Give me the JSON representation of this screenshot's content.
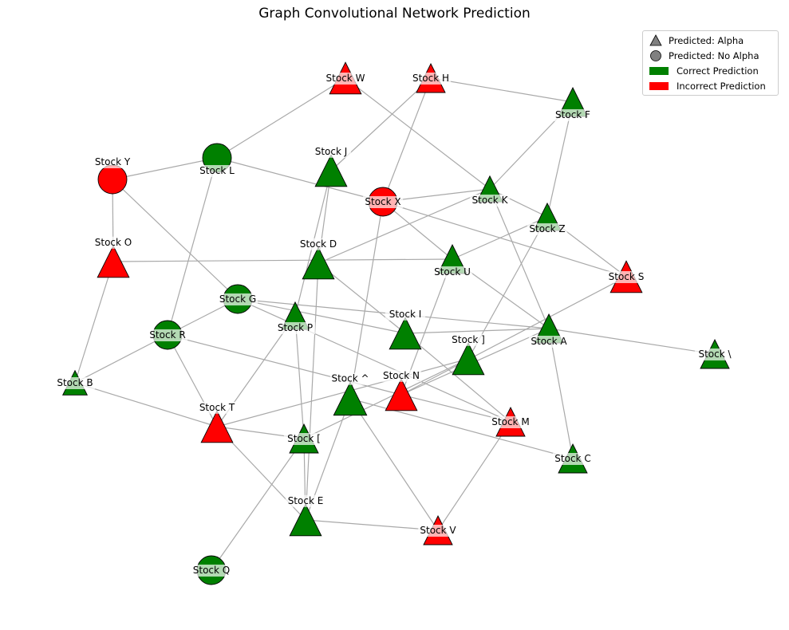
{
  "title": "Graph Convolutional Network Prediction",
  "colors": {
    "correct": "#008000",
    "incorrect": "#ff0000",
    "edge": "#a9a9a9",
    "legend_marker": "#808080"
  },
  "legend": {
    "alpha_label": "Predicted: Alpha",
    "no_alpha_label": "Predicted: No Alpha",
    "correct_label": "Correct Prediction",
    "incorrect_label": "Incorrect Prediction"
  },
  "nodes": [
    {
      "id": "A",
      "label": "Stock A",
      "shape": "triangle",
      "status": "correct"
    },
    {
      "id": "B",
      "label": "Stock B",
      "shape": "triangle",
      "status": "correct"
    },
    {
      "id": "C",
      "label": "Stock C",
      "shape": "triangle",
      "status": "correct"
    },
    {
      "id": "D",
      "label": "Stock D",
      "shape": "triangle",
      "status": "correct"
    },
    {
      "id": "E",
      "label": "Stock E",
      "shape": "triangle",
      "status": "correct"
    },
    {
      "id": "F",
      "label": "Stock F",
      "shape": "triangle",
      "status": "correct"
    },
    {
      "id": "G",
      "label": "Stock G",
      "shape": "circle",
      "status": "correct"
    },
    {
      "id": "H",
      "label": "Stock H",
      "shape": "triangle",
      "status": "incorrect"
    },
    {
      "id": "I",
      "label": "Stock I",
      "shape": "triangle",
      "status": "correct"
    },
    {
      "id": "J",
      "label": "Stock J",
      "shape": "triangle",
      "status": "correct"
    },
    {
      "id": "K",
      "label": "Stock K",
      "shape": "triangle",
      "status": "correct"
    },
    {
      "id": "L",
      "label": "Stock L",
      "shape": "circle",
      "status": "correct"
    },
    {
      "id": "M",
      "label": "Stock M",
      "shape": "triangle",
      "status": "incorrect"
    },
    {
      "id": "N",
      "label": "Stock N",
      "shape": "triangle",
      "status": "incorrect"
    },
    {
      "id": "O",
      "label": "Stock O",
      "shape": "triangle",
      "status": "incorrect"
    },
    {
      "id": "P",
      "label": "Stock P",
      "shape": "triangle",
      "status": "correct"
    },
    {
      "id": "Q",
      "label": "Stock Q",
      "shape": "circle",
      "status": "correct"
    },
    {
      "id": "R",
      "label": "Stock R",
      "shape": "circle",
      "status": "correct"
    },
    {
      "id": "S",
      "label": "Stock S",
      "shape": "triangle",
      "status": "incorrect"
    },
    {
      "id": "T",
      "label": "Stock T",
      "shape": "triangle",
      "status": "incorrect"
    },
    {
      "id": "U",
      "label": "Stock U",
      "shape": "triangle",
      "status": "correct"
    },
    {
      "id": "V",
      "label": "Stock V",
      "shape": "triangle",
      "status": "incorrect"
    },
    {
      "id": "W",
      "label": "Stock W",
      "shape": "triangle",
      "status": "incorrect"
    },
    {
      "id": "X",
      "label": "Stock X",
      "shape": "circle",
      "status": "incorrect"
    },
    {
      "id": "Y",
      "label": "Stock Y",
      "shape": "circle",
      "status": "incorrect"
    },
    {
      "id": "Z",
      "label": "Stock Z",
      "shape": "triangle",
      "status": "correct"
    },
    {
      "id": "bracket",
      "label": "Stock [",
      "shape": "triangle",
      "status": "correct"
    },
    {
      "id": "backslash",
      "label": "Stock \\",
      "shape": "triangle",
      "status": "correct"
    },
    {
      "id": "rbracket",
      "label": "Stock ]",
      "shape": "triangle",
      "status": "correct"
    },
    {
      "id": "caret",
      "label": "Stock ^",
      "shape": "triangle",
      "status": "correct"
    }
  ],
  "edges": [
    [
      "W",
      "L"
    ],
    [
      "W",
      "K"
    ],
    [
      "H",
      "F"
    ],
    [
      "H",
      "X"
    ],
    [
      "H",
      "J"
    ],
    [
      "Y",
      "L"
    ],
    [
      "Y",
      "O"
    ],
    [
      "Y",
      "G"
    ],
    [
      "L",
      "X"
    ],
    [
      "L",
      "R"
    ],
    [
      "J",
      "D"
    ],
    [
      "J",
      "P"
    ],
    [
      "X",
      "K"
    ],
    [
      "X",
      "U"
    ],
    [
      "X",
      "caret"
    ],
    [
      "K",
      "F"
    ],
    [
      "K",
      "Z"
    ],
    [
      "K",
      "A"
    ],
    [
      "F",
      "Z"
    ],
    [
      "Z",
      "S"
    ],
    [
      "Z",
      "U"
    ],
    [
      "Z",
      "rbracket"
    ],
    [
      "X",
      "S"
    ],
    [
      "D",
      "K"
    ],
    [
      "O",
      "U"
    ],
    [
      "O",
      "B"
    ],
    [
      "D",
      "I"
    ],
    [
      "D",
      "E"
    ],
    [
      "U",
      "A"
    ],
    [
      "U",
      "N"
    ],
    [
      "G",
      "R"
    ],
    [
      "G",
      "I"
    ],
    [
      "G",
      "A"
    ],
    [
      "G",
      "M"
    ],
    [
      "R",
      "B"
    ],
    [
      "R",
      "T"
    ],
    [
      "R",
      "N"
    ],
    [
      "P",
      "bracket"
    ],
    [
      "P",
      "T"
    ],
    [
      "I",
      "A"
    ],
    [
      "I",
      "M"
    ],
    [
      "A",
      "backslash"
    ],
    [
      "A",
      "C"
    ],
    [
      "A",
      "N"
    ],
    [
      "rbracket",
      "bracket"
    ],
    [
      "B",
      "T"
    ],
    [
      "T",
      "rbracket"
    ],
    [
      "T",
      "bracket"
    ],
    [
      "T",
      "E"
    ],
    [
      "caret",
      "C"
    ],
    [
      "caret",
      "V"
    ],
    [
      "caret",
      "E"
    ],
    [
      "N",
      "M"
    ],
    [
      "S",
      "N"
    ],
    [
      "bracket",
      "E"
    ],
    [
      "bracket",
      "Q"
    ],
    [
      "E",
      "V"
    ],
    [
      "M",
      "V"
    ]
  ]
}
